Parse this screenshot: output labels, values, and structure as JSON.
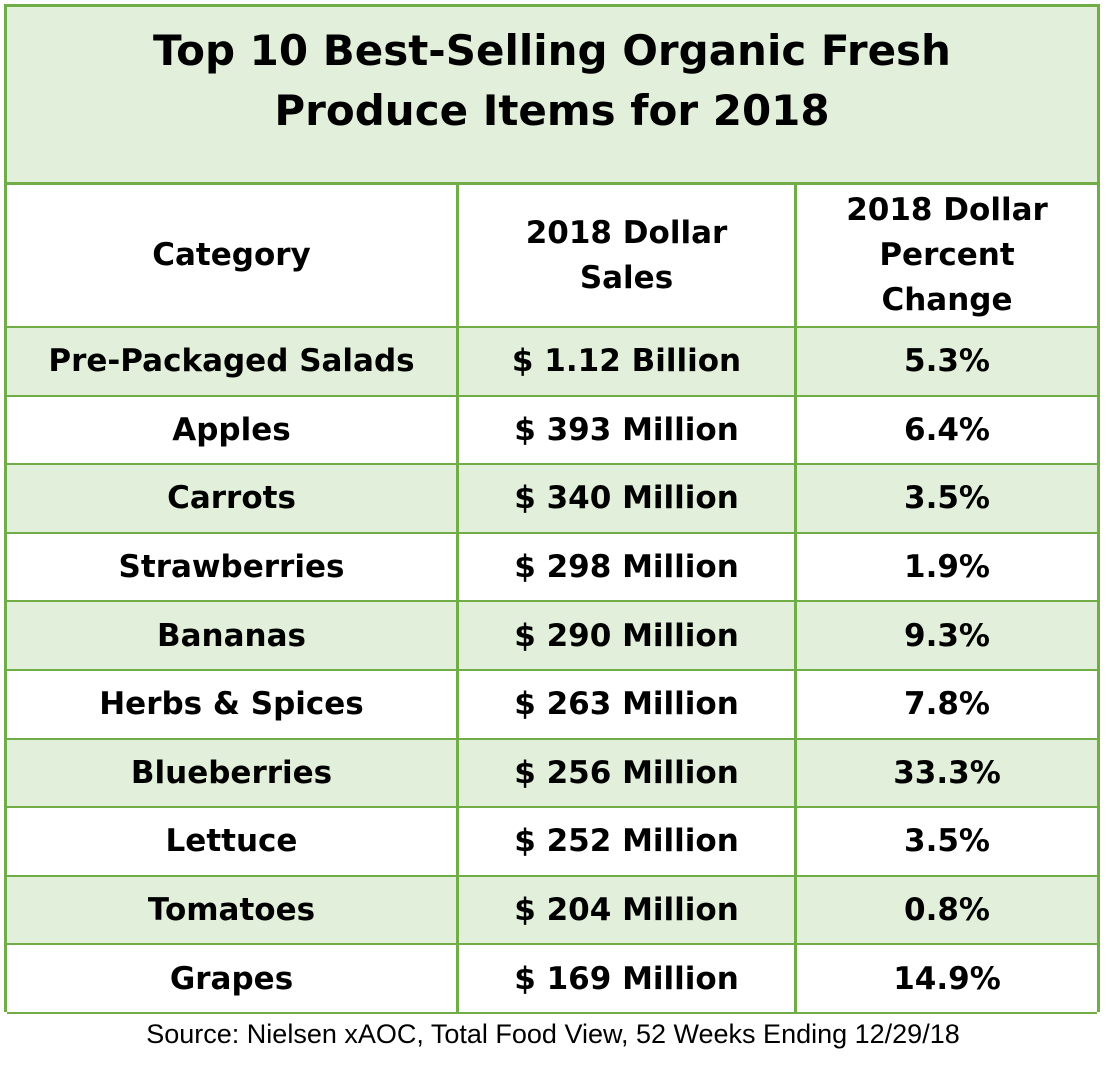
{
  "title": {
    "line1": "Top 10 Best-Selling Organic Fresh",
    "line2": "Produce Items for 2018"
  },
  "headers": {
    "category": "Category",
    "sales_line1": "2018 Dollar",
    "sales_line2": "Sales",
    "change_line1": "2018 Dollar",
    "change_line2": "Percent",
    "change_line3": "Change"
  },
  "rows": [
    {
      "category": "Pre-Packaged Salads",
      "sales": "$ 1.12 Billion",
      "change": "5.3%"
    },
    {
      "category": "Apples",
      "sales": "$ 393 Million",
      "change": "6.4%"
    },
    {
      "category": "Carrots",
      "sales": "$ 340 Million",
      "change": "3.5%"
    },
    {
      "category": "Strawberries",
      "sales": "$ 298 Million",
      "change": "1.9%"
    },
    {
      "category": "Bananas",
      "sales": "$ 290 Million",
      "change": "9.3%"
    },
    {
      "category": "Herbs & Spices",
      "sales": "$ 263 Million",
      "change": "7.8%"
    },
    {
      "category": "Blueberries",
      "sales": "$ 256 Million",
      "change": "33.3%"
    },
    {
      "category": "Lettuce",
      "sales": "$ 252 Million",
      "change": "3.5%"
    },
    {
      "category": "Tomatoes",
      "sales": "$ 204 Million",
      "change": "0.8%"
    },
    {
      "category": "Grapes",
      "sales": "$ 169 Million",
      "change": "14.9%"
    }
  ],
  "source": "Source: Nielsen xAOC, Total Food View, 52 Weeks Ending 12/29/18",
  "colors": {
    "border_green": "#70ad47",
    "shade_green": "#e2efda",
    "white": "#ffffff"
  },
  "chart_data": {
    "type": "table",
    "title": "Top 10 Best-Selling Organic Fresh Produce Items for 2018",
    "columns": [
      "Category",
      "2018 Dollar Sales",
      "2018 Dollar Percent Change"
    ],
    "categories": [
      "Pre-Packaged Salads",
      "Apples",
      "Carrots",
      "Strawberries",
      "Bananas",
      "Herbs & Spices",
      "Blueberries",
      "Lettuce",
      "Tomatoes",
      "Grapes"
    ],
    "series": [
      {
        "name": "2018 Dollar Sales",
        "values": [
          "$ 1.12 Billion",
          "$ 393 Million",
          "$ 340 Million",
          "$ 298 Million",
          "$ 290 Million",
          "$ 263 Million",
          "$ 256 Million",
          "$ 252 Million",
          "$ 204 Million",
          "$ 169 Million"
        ]
      },
      {
        "name": "2018 Dollar Percent Change",
        "values": [
          "5.3%",
          "6.4%",
          "3.5%",
          "1.9%",
          "9.3%",
          "7.8%",
          "33.3%",
          "3.5%",
          "0.8%",
          "14.9%"
        ]
      }
    ]
  }
}
